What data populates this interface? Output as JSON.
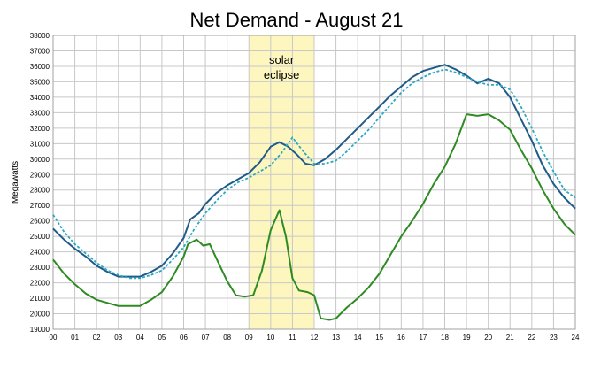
{
  "chart_data": {
    "type": "line",
    "title": "Net Demand - August 21",
    "xlabel": "",
    "ylabel": "Megawatts",
    "xlim": [
      0,
      24
    ],
    "ylim": [
      19000,
      38000
    ],
    "x_ticks": [
      "00",
      "01",
      "02",
      "03",
      "04",
      "05",
      "06",
      "07",
      "08",
      "09",
      "10",
      "11",
      "12",
      "13",
      "14",
      "15",
      "16",
      "17",
      "18",
      "19",
      "20",
      "21",
      "22",
      "23",
      "24"
    ],
    "y_ticks": [
      "19000",
      "20000",
      "21000",
      "22000",
      "23000",
      "24000",
      "25000",
      "26000",
      "27000",
      "28000",
      "29000",
      "30000",
      "31000",
      "32000",
      "33000",
      "34000",
      "35000",
      "36000",
      "37000",
      "38000"
    ],
    "grid": true,
    "legend": "none",
    "annotation": {
      "text_lines": [
        "solar",
        "eclipse"
      ],
      "x_range": [
        9,
        12
      ],
      "color": "#fdf7bf"
    },
    "series": [
      {
        "color": "#1f5b8a",
        "style": "solid",
        "points": [
          [
            0,
            25500
          ],
          [
            0.5,
            24800
          ],
          [
            1,
            24200
          ],
          [
            1.5,
            23700
          ],
          [
            2,
            23100
          ],
          [
            2.5,
            22700
          ],
          [
            3,
            22400
          ],
          [
            3.5,
            22400
          ],
          [
            4,
            22400
          ],
          [
            4.5,
            22700
          ],
          [
            5,
            23100
          ],
          [
            5.5,
            23900
          ],
          [
            6,
            24900
          ],
          [
            6.3,
            26100
          ],
          [
            6.7,
            26500
          ],
          [
            7,
            27100
          ],
          [
            7.5,
            27800
          ],
          [
            8,
            28300
          ],
          [
            8.5,
            28700
          ],
          [
            9,
            29100
          ],
          [
            9.5,
            29800
          ],
          [
            10,
            30800
          ],
          [
            10.4,
            31100
          ],
          [
            10.8,
            30800
          ],
          [
            11.2,
            30300
          ],
          [
            11.6,
            29700
          ],
          [
            12,
            29600
          ],
          [
            12.5,
            30000
          ],
          [
            13,
            30600
          ],
          [
            13.5,
            31300
          ],
          [
            14,
            32000
          ],
          [
            14.5,
            32700
          ],
          [
            15,
            33400
          ],
          [
            15.5,
            34100
          ],
          [
            16,
            34700
          ],
          [
            16.5,
            35300
          ],
          [
            17,
            35700
          ],
          [
            17.5,
            35900
          ],
          [
            18,
            36100
          ],
          [
            18.5,
            35800
          ],
          [
            19,
            35400
          ],
          [
            19.5,
            34900
          ],
          [
            20,
            35200
          ],
          [
            20.5,
            34900
          ],
          [
            21,
            34000
          ],
          [
            21.5,
            32600
          ],
          [
            22,
            31200
          ],
          [
            22.5,
            29600
          ],
          [
            23,
            28400
          ],
          [
            23.5,
            27500
          ],
          [
            24,
            26800
          ]
        ]
      },
      {
        "color": "#2aa8c0",
        "style": "dashed",
        "points": [
          [
            0,
            26400
          ],
          [
            0.5,
            25300
          ],
          [
            1,
            24500
          ],
          [
            1.5,
            23900
          ],
          [
            2,
            23300
          ],
          [
            2.5,
            22800
          ],
          [
            3,
            22500
          ],
          [
            3.5,
            22300
          ],
          [
            4,
            22300
          ],
          [
            4.5,
            22500
          ],
          [
            5,
            22800
          ],
          [
            5.5,
            23500
          ],
          [
            6,
            24300
          ],
          [
            6.5,
            25500
          ],
          [
            7,
            26500
          ],
          [
            7.5,
            27300
          ],
          [
            8,
            28000
          ],
          [
            8.5,
            28500
          ],
          [
            9,
            28800
          ],
          [
            9.5,
            29200
          ],
          [
            10,
            29600
          ],
          [
            10.5,
            30400
          ],
          [
            11,
            31400
          ],
          [
            11.5,
            30500
          ],
          [
            12,
            29700
          ],
          [
            12.5,
            29700
          ],
          [
            13,
            29900
          ],
          [
            13.5,
            30500
          ],
          [
            14,
            31200
          ],
          [
            14.5,
            31900
          ],
          [
            15,
            32700
          ],
          [
            15.5,
            33500
          ],
          [
            16,
            34300
          ],
          [
            16.5,
            34900
          ],
          [
            17,
            35300
          ],
          [
            17.5,
            35600
          ],
          [
            18,
            35800
          ],
          [
            18.5,
            35600
          ],
          [
            19,
            35300
          ],
          [
            19.5,
            35000
          ],
          [
            20,
            34800
          ],
          [
            20.5,
            34800
          ],
          [
            21,
            34500
          ],
          [
            21.5,
            33400
          ],
          [
            22,
            32000
          ],
          [
            22.5,
            30500
          ],
          [
            23,
            29200
          ],
          [
            23.5,
            28000
          ],
          [
            24,
            27500
          ]
        ]
      },
      {
        "color": "#2e8a23",
        "style": "solid",
        "points": [
          [
            0,
            23500
          ],
          [
            0.5,
            22600
          ],
          [
            1,
            21900
          ],
          [
            1.5,
            21300
          ],
          [
            2,
            20900
          ],
          [
            2.5,
            20700
          ],
          [
            3,
            20500
          ],
          [
            3.5,
            20500
          ],
          [
            4,
            20500
          ],
          [
            4.5,
            20900
          ],
          [
            5,
            21400
          ],
          [
            5.5,
            22400
          ],
          [
            6,
            23700
          ],
          [
            6.2,
            24500
          ],
          [
            6.6,
            24800
          ],
          [
            6.9,
            24400
          ],
          [
            7.2,
            24500
          ],
          [
            7.6,
            23300
          ],
          [
            8,
            22100
          ],
          [
            8.4,
            21200
          ],
          [
            8.8,
            21100
          ],
          [
            9.2,
            21200
          ],
          [
            9.6,
            22800
          ],
          [
            10,
            25400
          ],
          [
            10.4,
            26700
          ],
          [
            10.7,
            25000
          ],
          [
            11,
            22300
          ],
          [
            11.3,
            21500
          ],
          [
            11.7,
            21400
          ],
          [
            12,
            21200
          ],
          [
            12.3,
            19700
          ],
          [
            12.7,
            19600
          ],
          [
            13,
            19700
          ],
          [
            13.5,
            20400
          ],
          [
            14,
            21000
          ],
          [
            14.5,
            21700
          ],
          [
            15,
            22600
          ],
          [
            15.5,
            23800
          ],
          [
            16,
            25000
          ],
          [
            16.5,
            26000
          ],
          [
            17,
            27100
          ],
          [
            17.5,
            28400
          ],
          [
            18,
            29500
          ],
          [
            18.5,
            31000
          ],
          [
            19,
            32900
          ],
          [
            19.5,
            32800
          ],
          [
            20,
            32900
          ],
          [
            20.5,
            32500
          ],
          [
            21,
            31900
          ],
          [
            21.5,
            30600
          ],
          [
            22,
            29400
          ],
          [
            22.5,
            28000
          ],
          [
            23,
            26800
          ],
          [
            23.5,
            25800
          ],
          [
            24,
            25100
          ]
        ]
      }
    ]
  }
}
